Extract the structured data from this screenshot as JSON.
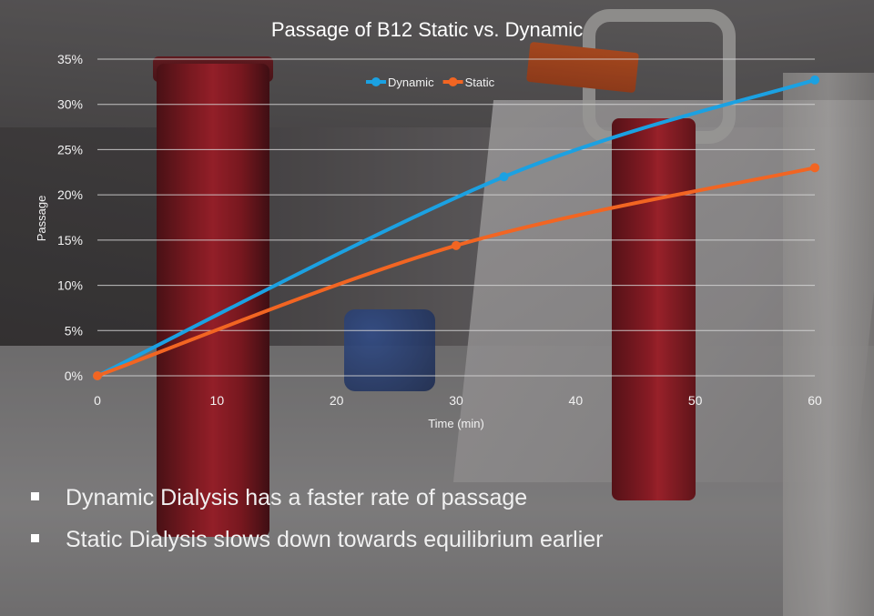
{
  "colors": {
    "dynamic": "#1ba1e2",
    "static": "#f26522"
  },
  "bullets": [
    "Dynamic Dialysis has a faster rate of passage",
    "Static Dialysis slows down towards equilibrium earlier"
  ],
  "chart_data": {
    "type": "line",
    "title": "Passage of B12 Static vs. Dynamic",
    "xlabel": "Time (min)",
    "ylabel": "Passage",
    "xlim": [
      0,
      60
    ],
    "ylim": [
      0,
      0.35
    ],
    "x_ticks": [
      0,
      10,
      20,
      30,
      40,
      50,
      60
    ],
    "x_tick_labels": [
      "0",
      "10",
      "20",
      "30",
      "40",
      "50",
      "60"
    ],
    "y_ticks": [
      0,
      0.05,
      0.1,
      0.15,
      0.2,
      0.25,
      0.3,
      0.35
    ],
    "y_tick_labels": [
      "0%",
      "5%",
      "10%",
      "15%",
      "20%",
      "25%",
      "30%",
      "35%"
    ],
    "grid": "horizontal",
    "legend_position": "top-center",
    "series": [
      {
        "name": "Dynamic",
        "color": "#1ba1e2",
        "smooth": true,
        "x": [
          0,
          34,
          60
        ],
        "y": [
          0,
          0.22,
          0.327
        ]
      },
      {
        "name": "Static",
        "color": "#f26522",
        "smooth": true,
        "x": [
          0,
          30,
          60
        ],
        "y": [
          0,
          0.144,
          0.23
        ]
      }
    ]
  }
}
